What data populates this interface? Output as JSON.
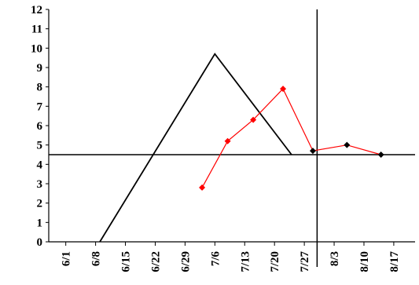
{
  "chart_data": {
    "type": "line",
    "title": "",
    "xlabel": "",
    "ylabel": "",
    "x_axis": {
      "type": "date",
      "tick_labels": [
        "6/1",
        "6/8",
        "6/15",
        "6/22",
        "6/29",
        "7/6",
        "7/13",
        "7/20",
        "7/27",
        "8/3",
        "8/10",
        "8/17"
      ],
      "range": [
        "5/28",
        "8/22"
      ]
    },
    "y_axis": {
      "ylim": [
        0,
        12
      ],
      "tick_labels": [
        "0",
        "1",
        "2",
        "3",
        "4",
        "5",
        "6",
        "7",
        "8",
        "9",
        "10",
        "11",
        "12"
      ]
    },
    "grid": false,
    "legend": "none",
    "series": [
      {
        "color": "#000000",
        "marker": "none",
        "points": [
          {
            "x": "6/9",
            "y": 0
          },
          {
            "x": "7/6",
            "y": 9.7
          },
          {
            "x": "7/24",
            "y": 4.5
          }
        ]
      },
      {
        "color": "#ff0000",
        "marker": "diamond",
        "points": [
          {
            "x": "7/3",
            "y": 2.8
          },
          {
            "x": "7/9",
            "y": 5.2
          },
          {
            "x": "7/15",
            "y": 6.3
          },
          {
            "x": "7/22",
            "y": 7.9
          },
          {
            "x": "7/29",
            "y": 4.7
          },
          {
            "x": "8/6",
            "y": 5.0
          },
          {
            "x": "8/14",
            "y": 4.5
          }
        ],
        "black_marker_from": "7/29"
      }
    ],
    "reference_lines": [
      {
        "orientation": "horizontal",
        "y": 4.5,
        "color": "#000000"
      },
      {
        "orientation": "vertical",
        "x": "7/30",
        "color": "#000000"
      }
    ]
  }
}
